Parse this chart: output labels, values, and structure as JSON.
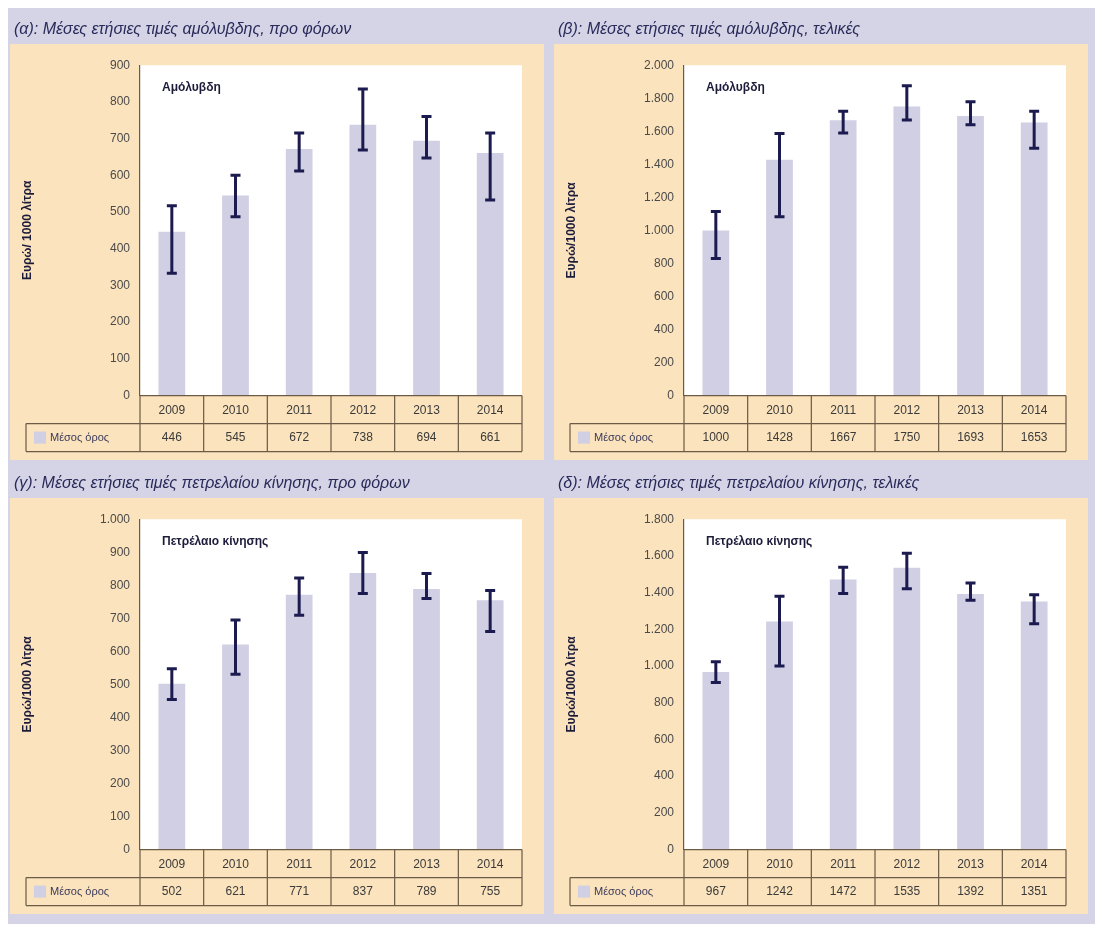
{
  "chart_data": [
    {
      "type": "bar",
      "title": "(α): Μέσες ετήσιες τιμές αμόλυβδης, προ φόρων",
      "ylabel": "Ευρώ/ 1000 λίτρα",
      "annotations": [
        "Αμόλυβδη"
      ],
      "categories": [
        "2009",
        "2010",
        "2011",
        "2012",
        "2013",
        "2014"
      ],
      "series": [
        {
          "name": "Μέσος όρος",
          "color": "#d0cfe3",
          "values": [
            446,
            545,
            672,
            738,
            694,
            661
          ],
          "errors": [
            [
              333,
              517
            ],
            [
              487,
              600
            ],
            [
              612,
              715
            ],
            [
              669,
              835
            ],
            [
              647,
              760
            ],
            [
              533,
              715
            ]
          ]
        }
      ],
      "ylim": [
        0,
        900
      ],
      "yticks": [
        0,
        100,
        200,
        300,
        400,
        500,
        600,
        700,
        800,
        900
      ],
      "data_labels": true,
      "legend": "bottom left",
      "grid": false
    },
    {
      "type": "bar",
      "title": "(β): Μέσες ετήσιες τιμές αμόλυβδης, τελικές",
      "ylabel": "Ευρώ/1000 λίτρα",
      "annotations": [
        "Αμόλυβδη"
      ],
      "categories": [
        "2009",
        "2010",
        "2011",
        "2012",
        "2013",
        "2014"
      ],
      "series": [
        {
          "name": "Μέσος όρος",
          "color": "#d0cfe3",
          "values": [
            1000,
            1428,
            1667,
            1750,
            1693,
            1653
          ],
          "errors": [
            [
              830,
              1115
            ],
            [
              1083,
              1587
            ],
            [
              1590,
              1722
            ],
            [
              1669,
              1875
            ],
            [
              1640,
              1779
            ],
            [
              1498,
              1722
            ]
          ]
        }
      ],
      "ylim": [
        0,
        2000
      ],
      "yticks": [
        0,
        200,
        400,
        600,
        800,
        {
          "value": 1000,
          "label": "1.000"
        },
        {
          "value": 1200,
          "label": "1.200"
        },
        {
          "value": 1400,
          "label": "1.400"
        },
        {
          "value": 1600,
          "label": "1.600"
        },
        {
          "value": 1800,
          "label": "1.800"
        },
        {
          "value": 2000,
          "label": "2.000"
        }
      ],
      "data_labels": true,
      "legend": "bottom left",
      "grid": false
    },
    {
      "type": "bar",
      "title": "(γ): Μέσες ετήσιες τιμές πετρελαίου κίνησης, προ φόρων",
      "ylabel": "Ευρώ/1000 λίτρα",
      "annotations": [
        "Πετρέλαιο κίνησης"
      ],
      "categories": [
        "2009",
        "2010",
        "2011",
        "2012",
        "2013",
        "2014"
      ],
      "series": [
        {
          "name": "Μέσος όρος",
          "color": "#d0cfe3",
          "values": [
            502,
            621,
            771,
            837,
            789,
            755
          ],
          "errors": [
            [
              454,
              547
            ],
            [
              531,
              695
            ],
            [
              709,
              822
            ],
            [
              775,
              899
            ],
            [
              760,
              836
            ],
            [
              660,
              784
            ]
          ]
        }
      ],
      "ylim": [
        0,
        1000
      ],
      "yticks": [
        0,
        100,
        200,
        300,
        400,
        500,
        600,
        700,
        800,
        900,
        {
          "value": 1000,
          "label": "1.000"
        }
      ],
      "data_labels": true,
      "legend": "bottom left",
      "grid": false
    },
    {
      "type": "bar",
      "title": "(δ): Μέσες ετήσιες τιμές πετρελαίου κίνησης, τελικές",
      "ylabel": "Ευρώ/1000 λίτρα",
      "annotations": [
        "Πετρέλαιο κίνησης"
      ],
      "categories": [
        "2009",
        "2010",
        "2011",
        "2012",
        "2013",
        "2014"
      ],
      "series": [
        {
          "name": "Μέσος όρος",
          "color": "#d0cfe3",
          "values": [
            967,
            1242,
            1472,
            1535,
            1392,
            1351
          ],
          "errors": [
            [
              910,
              1023
            ],
            [
              1000,
              1380
            ],
            [
              1395,
              1538
            ],
            [
              1421,
              1615
            ],
            [
              1359,
              1453
            ],
            [
              1231,
              1389
            ]
          ]
        }
      ],
      "ylim": [
        0,
        1800
      ],
      "yticks": [
        0,
        200,
        400,
        600,
        800,
        {
          "value": 1000,
          "label": "1.000"
        },
        {
          "value": 1200,
          "label": "1.200"
        },
        {
          "value": 1400,
          "label": "1.400"
        },
        {
          "value": 1600,
          "label": "1.600"
        },
        {
          "value": 1800,
          "label": "1.800"
        }
      ],
      "data_labels": true,
      "legend": "bottom left",
      "grid": false
    }
  ]
}
